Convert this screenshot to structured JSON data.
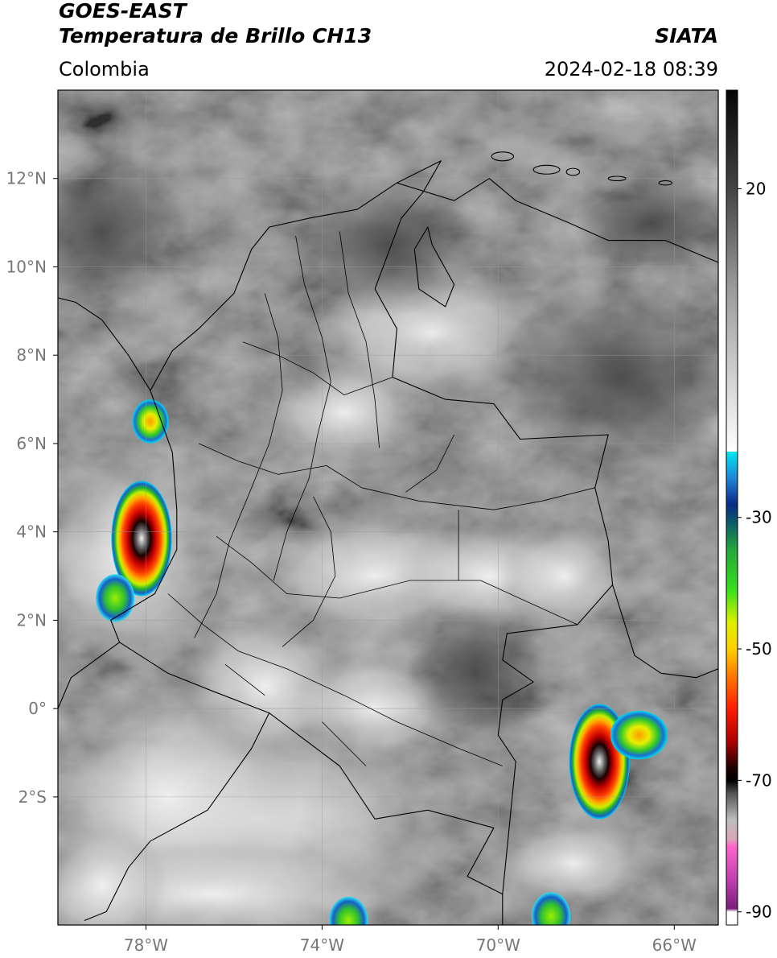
{
  "header": {
    "satellite": "GOES-EAST",
    "product": "Temperatura de Brillo CH13",
    "source": "SIATA",
    "region": "Colombia",
    "datetime": "2024-02-18 08:39"
  },
  "map": {
    "lat_labels": [
      "12°N",
      "10°N",
      "8°N",
      "6°N",
      "4°N",
      "2°N",
      "0°",
      "2°S"
    ],
    "lon_labels": [
      "78°W",
      "74°W",
      "70°W",
      "66°W"
    ],
    "lat_values": [
      12,
      10,
      8,
      6,
      4,
      2,
      0,
      -2
    ],
    "lon_values": [
      -78,
      -74,
      -70,
      -66
    ],
    "extent": {
      "lon_min": -80.0,
      "lon_max": -65.0,
      "lat_min": -4.9,
      "lat_max": 14.0
    },
    "grid": true,
    "colors": {
      "frame": "#000000",
      "border": "#000000",
      "grid": "#9a9a9a",
      "background": "#6a6a6a"
    },
    "storm_cells": [
      {
        "name": "pacific-cell-4N",
        "lon": -78.1,
        "lat": 3.85,
        "intensity": "very-cold"
      },
      {
        "name": "pacific-cell-6N",
        "lon": -77.9,
        "lat": 6.5,
        "intensity": "cold"
      },
      {
        "name": "pacific-cell-2N",
        "lon": -78.7,
        "lat": 2.5,
        "intensity": "cool"
      },
      {
        "name": "amazon-cell-1S",
        "lon": -67.7,
        "lat": -1.2,
        "intensity": "very-cold"
      },
      {
        "name": "amazon-cell-south",
        "lon": -73.4,
        "lat": -4.8,
        "intensity": "cool"
      },
      {
        "name": "amazon-cell-se",
        "lon": -68.8,
        "lat": -4.7,
        "intensity": "cool"
      }
    ]
  },
  "colorbar": {
    "labels": [
      "20",
      "-30",
      "-50",
      "-70",
      "-90"
    ],
    "label_values": [
      20,
      -30,
      -50,
      -70,
      -90
    ],
    "range": [
      -92,
      35
    ],
    "stops": [
      {
        "v": 35,
        "c": "#050505"
      },
      {
        "v": 20,
        "c": "#444444"
      },
      {
        "v": 5,
        "c": "#9a9a9a"
      },
      {
        "v": -20,
        "c": "#ffffff"
      },
      {
        "v": -20.01,
        "c": "#00e8f0"
      },
      {
        "v": -24,
        "c": "#1f86d6"
      },
      {
        "v": -28,
        "c": "#0a2a88"
      },
      {
        "v": -31,
        "c": "#0a6066"
      },
      {
        "v": -35,
        "c": "#25a83a"
      },
      {
        "v": -41,
        "c": "#36e01c"
      },
      {
        "v": -46,
        "c": "#dcf000"
      },
      {
        "v": -50,
        "c": "#ffd000"
      },
      {
        "v": -54,
        "c": "#ff7a00"
      },
      {
        "v": -59,
        "c": "#ff1e00"
      },
      {
        "v": -64,
        "c": "#b00000"
      },
      {
        "v": -68,
        "c": "#200000"
      },
      {
        "v": -70,
        "c": "#000000"
      },
      {
        "v": -72,
        "c": "#555555"
      },
      {
        "v": -76,
        "c": "#bdbdbd"
      },
      {
        "v": -79,
        "c": "#d9a5b8"
      },
      {
        "v": -80,
        "c": "#ff66cc"
      },
      {
        "v": -85,
        "c": "#c23fb0"
      },
      {
        "v": -89.5,
        "c": "#7a1f7a"
      },
      {
        "v": -90,
        "c": "#ffffff"
      },
      {
        "v": -92,
        "c": "#ffffff"
      }
    ]
  }
}
